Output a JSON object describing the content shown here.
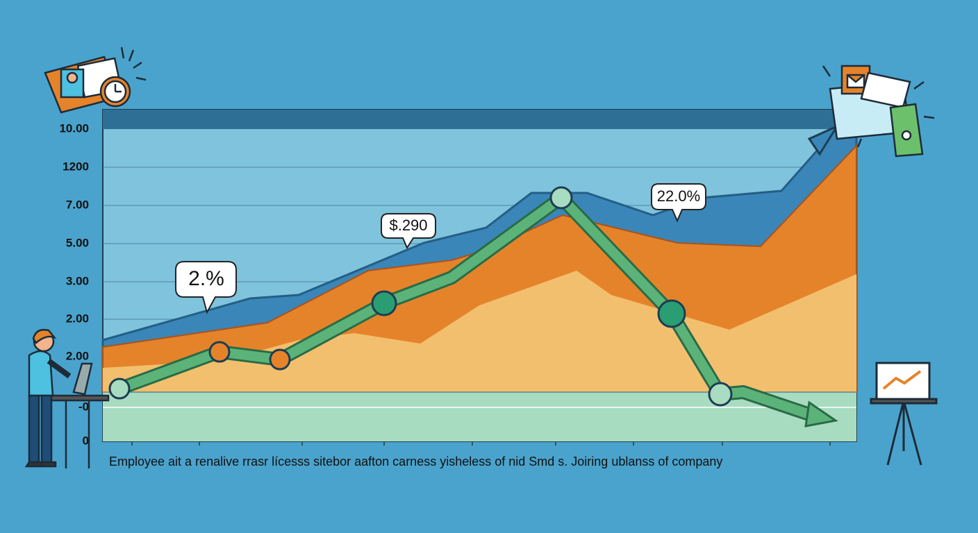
{
  "axis_labels": [
    "10.00",
    "1200",
    "7.00",
    "5.00",
    "3.00",
    "2.00",
    "2.00",
    "-0",
    "0"
  ],
  "callouts": [
    "2.%",
    "$.290",
    "22.0%"
  ],
  "caption": "Employee ait a renalive rrasr lícesss sitebor aafton carness yisheless of nid Smd s. Joiring ublanss of company"
}
